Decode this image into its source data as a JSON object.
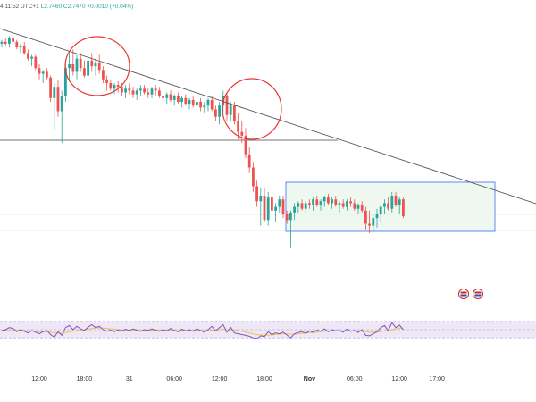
{
  "readout": {
    "prefix": "4 11:52 UTC+1",
    "low": "L2.7460",
    "close": "C2.7470",
    "change": "+0.0010 (+0.04%)"
  },
  "colors": {
    "up": "#26a69a",
    "down": "#ef5350",
    "trendline": "#555555",
    "circle": "#e53935",
    "range_fill": "#e8f5e9",
    "range_border": "#5b8def",
    "rsi_band": "#ede7f6",
    "rsi_line": "#7e57c2",
    "rsi_ma": "#f5c04a"
  },
  "chart_data": {
    "type": "candlestick",
    "x_tick_labels": [
      {
        "label": "12:00",
        "i": 10,
        "bold": false
      },
      {
        "label": "18:00",
        "i": 22,
        "bold": false
      },
      {
        "label": "31",
        "i": 34,
        "bold": false
      },
      {
        "label": "06:00",
        "i": 46,
        "bold": false
      },
      {
        "label": "12:00",
        "i": 58,
        "bold": false
      },
      {
        "label": "18:00",
        "i": 70,
        "bold": false
      },
      {
        "label": "Nov",
        "i": 82,
        "bold": true
      },
      {
        "label": "06:00",
        "i": 94,
        "bold": false
      },
      {
        "label": "12:00",
        "i": 106,
        "bold": false
      },
      {
        "label": "17:00",
        "i": 116,
        "bold": false
      }
    ],
    "price_scale": {
      "min": 0,
      "max": 100
    },
    "candles": [
      [
        91,
        93,
        89,
        92
      ],
      [
        92,
        94,
        90,
        91
      ],
      [
        91,
        95,
        89,
        94
      ],
      [
        94,
        96,
        91,
        92
      ],
      [
        92,
        93,
        88,
        89
      ],
      [
        89,
        91,
        86,
        90
      ],
      [
        90,
        92,
        85,
        86
      ],
      [
        86,
        88,
        82,
        83
      ],
      [
        83,
        85,
        79,
        84
      ],
      [
        84,
        85,
        77,
        78
      ],
      [
        78,
        80,
        72,
        75
      ],
      [
        75,
        77,
        70,
        76
      ],
      [
        76,
        78,
        72,
        73
      ],
      [
        73,
        74,
        60,
        62
      ],
      [
        62,
        70,
        45,
        68
      ],
      [
        68,
        72,
        52,
        55
      ],
      [
        55,
        66,
        38,
        63
      ],
      [
        63,
        80,
        60,
        78
      ],
      [
        78,
        86,
        72,
        80
      ],
      [
        80,
        88,
        74,
        76
      ],
      [
        76,
        85,
        72,
        83
      ],
      [
        83,
        86,
        76,
        78
      ],
      [
        78,
        82,
        73,
        74
      ],
      [
        74,
        84,
        72,
        82
      ],
      [
        82,
        86,
        76,
        79
      ],
      [
        79,
        83,
        74,
        81
      ],
      [
        81,
        85,
        75,
        77
      ],
      [
        77,
        79,
        70,
        72
      ],
      [
        72,
        74,
        66,
        70
      ],
      [
        70,
        72,
        66,
        67
      ],
      [
        67,
        70,
        64,
        69
      ],
      [
        69,
        71,
        65,
        68
      ],
      [
        68,
        70,
        63,
        65
      ],
      [
        65,
        69,
        62,
        67
      ],
      [
        67,
        70,
        64,
        66
      ],
      [
        66,
        68,
        62,
        64
      ],
      [
        64,
        67,
        61,
        66
      ],
      [
        66,
        69,
        63,
        67
      ],
      [
        67,
        69,
        64,
        65
      ],
      [
        65,
        67,
        62,
        64
      ],
      [
        64,
        68,
        62,
        67
      ],
      [
        67,
        69,
        63,
        66
      ],
      [
        66,
        68,
        62,
        63
      ],
      [
        63,
        65,
        60,
        62
      ],
      [
        62,
        65,
        59,
        64
      ],
      [
        64,
        66,
        60,
        61
      ],
      [
        61,
        64,
        58,
        63
      ],
      [
        63,
        65,
        59,
        60
      ],
      [
        60,
        63,
        57,
        62
      ],
      [
        62,
        64,
        58,
        59
      ],
      [
        59,
        62,
        56,
        61
      ],
      [
        61,
        63,
        57,
        58
      ],
      [
        58,
        62,
        55,
        60
      ],
      [
        60,
        62,
        55,
        57
      ],
      [
        57,
        60,
        54,
        58
      ],
      [
        58,
        62,
        55,
        61
      ],
      [
        61,
        63,
        55,
        56
      ],
      [
        56,
        58,
        50,
        52
      ],
      [
        52,
        60,
        48,
        58
      ],
      [
        58,
        66,
        54,
        63
      ],
      [
        63,
        65,
        50,
        53
      ],
      [
        53,
        60,
        50,
        58
      ],
      [
        58,
        60,
        48,
        50
      ],
      [
        50,
        54,
        40,
        44
      ],
      [
        44,
        50,
        38,
        42
      ],
      [
        42,
        46,
        30,
        32
      ],
      [
        32,
        36,
        22,
        25
      ],
      [
        25,
        28,
        12,
        15
      ],
      [
        15,
        18,
        4,
        7
      ],
      [
        7,
        14,
        -6,
        10
      ],
      [
        10,
        14,
        -4,
        -3
      ],
      [
        -3,
        12,
        -6,
        9
      ],
      [
        9,
        12,
        0,
        2
      ],
      [
        2,
        6,
        -4,
        4
      ],
      [
        4,
        10,
        1,
        8
      ],
      [
        8,
        10,
        -2,
        0
      ],
      [
        0,
        2,
        -5,
        -3
      ],
      [
        -3,
        2,
        -18,
        1
      ],
      [
        1,
        6,
        -3,
        4
      ],
      [
        4,
        7,
        1,
        6
      ],
      [
        6,
        8,
        2,
        3
      ],
      [
        3,
        7,
        1,
        6
      ],
      [
        6,
        8,
        3,
        5
      ],
      [
        5,
        9,
        2,
        8
      ],
      [
        8,
        10,
        4,
        5
      ],
      [
        5,
        8,
        2,
        7
      ],
      [
        7,
        10,
        4,
        9
      ],
      [
        9,
        11,
        5,
        6
      ],
      [
        6,
        9,
        3,
        8
      ],
      [
        8,
        10,
        4,
        5
      ],
      [
        5,
        7,
        1,
        6
      ],
      [
        6,
        8,
        3,
        4
      ],
      [
        4,
        8,
        2,
        7
      ],
      [
        7,
        9,
        4,
        6
      ],
      [
        6,
        8,
        2,
        3
      ],
      [
        3,
        6,
        0,
        5
      ],
      [
        5,
        7,
        1,
        2
      ],
      [
        2,
        4,
        -8,
        -5
      ],
      [
        -5,
        2,
        -10,
        -6
      ],
      [
        -6,
        0,
        -9,
        -2
      ],
      [
        -2,
        3,
        -7,
        0
      ],
      [
        0,
        5,
        -4,
        4
      ],
      [
        4,
        8,
        0,
        6
      ],
      [
        6,
        9,
        2,
        3
      ],
      [
        3,
        12,
        1,
        10
      ],
      [
        10,
        12,
        4,
        5
      ],
      [
        5,
        9,
        0,
        8
      ],
      [
        8,
        9,
        -2,
        -1
      ]
    ],
    "rsi": [
      48,
      50,
      55,
      53,
      45,
      50,
      46,
      42,
      48,
      44,
      40,
      45,
      48,
      38,
      32,
      45,
      36,
      55,
      60,
      50,
      58,
      52,
      48,
      56,
      62,
      55,
      58,
      50,
      46,
      49,
      45,
      50,
      47,
      51,
      48,
      52,
      49,
      46,
      50,
      48,
      52,
      49,
      46,
      50,
      47,
      53,
      48,
      45,
      51,
      47,
      50,
      46,
      52,
      48,
      44,
      50,
      58,
      47,
      55,
      62,
      44,
      56,
      42,
      40,
      38,
      36,
      34,
      30,
      28,
      35,
      33,
      45,
      38,
      42,
      40,
      44,
      37,
      30,
      40,
      43,
      45,
      41,
      47,
      44,
      49,
      46,
      52,
      45,
      50,
      47,
      48,
      44,
      51,
      46,
      48,
      43,
      50,
      36,
      35,
      40,
      45,
      55,
      60,
      48,
      67,
      55,
      61,
      50
    ],
    "rsi_ma": [
      47,
      48,
      49,
      50,
      49,
      49,
      48,
      47,
      47,
      46,
      45,
      45,
      45,
      44,
      42,
      42,
      41,
      43,
      45,
      46,
      48,
      49,
      50,
      51,
      53,
      54,
      55,
      54,
      53,
      52,
      51,
      50,
      49,
      49,
      49,
      49,
      49,
      49,
      49,
      49,
      49,
      49,
      49,
      49,
      49,
      49,
      49,
      48,
      48,
      48,
      48,
      48,
      48,
      48,
      48,
      48,
      49,
      49,
      50,
      51,
      50,
      50,
      49,
      48,
      46,
      44,
      42,
      40,
      38,
      37,
      36,
      37,
      37,
      38,
      39,
      40,
      40,
      39,
      39,
      40,
      41,
      42,
      43,
      43,
      44,
      45,
      46,
      46,
      47,
      47,
      47,
      47,
      47,
      47,
      47,
      46,
      46,
      45,
      44,
      44,
      44,
      45,
      47,
      48,
      50,
      52,
      54,
      54
    ],
    "rsi_range": [
      0,
      100
    ],
    "rsi_band": [
      30,
      70
    ]
  }
}
